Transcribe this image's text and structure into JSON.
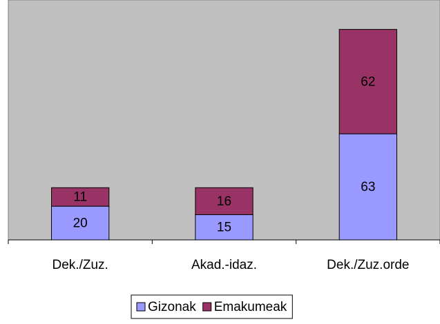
{
  "chart_data": {
    "type": "stacked_bar",
    "categories": [
      "Dek./Zuz.",
      "Akad.-idaz.",
      "Dek./Zuz.orde"
    ],
    "series": [
      {
        "name": "Gizonak",
        "color": "#9999ff",
        "values": [
          20,
          15,
          63
        ]
      },
      {
        "name": "Emakumeak",
        "color": "#993366",
        "values": [
          11,
          16,
          62
        ]
      }
    ],
    "ylim": [
      0,
      140
    ],
    "legend": "bottom"
  }
}
